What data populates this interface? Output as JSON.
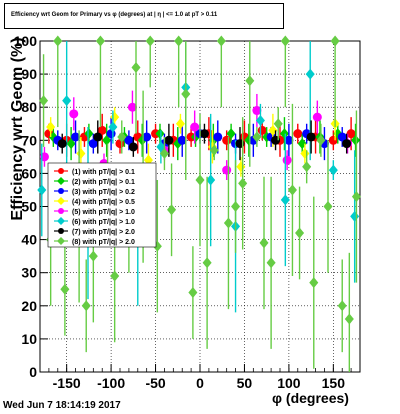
{
  "title": "Efficiency wrt Geom for Primary vs φ (degrees) at | η | <= 1.0 at pT > 0.11",
  "timestamp": "Wed Jun  7 18:14:19 2017",
  "chart_data": {
    "type": "scatter",
    "title": "Efficiency wrt Geom for Primary vs φ (degrees) at | η | <= 1.0 at pT > 0.11",
    "xlabel": "φ (degrees)",
    "ylabel": "Efficiency wrt Geom (%)",
    "xlim": [
      -180,
      180
    ],
    "ylim": [
      0,
      100
    ],
    "xticks": [
      -150,
      -100,
      -50,
      0,
      50,
      100,
      150
    ],
    "yticks": [
      0,
      10,
      20,
      30,
      40,
      50,
      60,
      70,
      80,
      90,
      100
    ],
    "grid": true,
    "legend_position": "left",
    "legend": [
      "(1) with pT/|q| > 0.1",
      "(2) with pT/|q| > 0.1",
      "(3) with pT/|q| > 0.2",
      "(4) with pT/|q| > 0.5",
      "(5) with pT/|q| > 1.0",
      "(6) with pT/|q| > 1.0",
      "(7) with pT/|q| > 2.0",
      "(8) with pT/|q| > 2.0"
    ],
    "series": [
      {
        "name": "(1) with pT/|q| > 0.1",
        "color": "#ff0000",
        "x": [
          -170,
          -150,
          -130,
          -110,
          -90,
          -70,
          -50,
          -30,
          -10,
          10,
          30,
          50,
          70,
          90,
          110,
          130,
          150,
          170
        ],
        "y": [
          72,
          70,
          71,
          73,
          69,
          71,
          72,
          70,
          71,
          72,
          70,
          71,
          73,
          70,
          72,
          71,
          70,
          72
        ]
      },
      {
        "name": "(2) with pT/|q| > 0.1",
        "color": "#00cc00",
        "x": [
          -165,
          -145,
          -125,
          -105,
          -85,
          -65,
          -45,
          -25,
          -5,
          15,
          35,
          55,
          75,
          95,
          115,
          135,
          155,
          175
        ],
        "y": [
          71,
          69,
          72,
          70,
          71,
          70,
          72,
          69,
          71,
          70,
          72,
          70,
          71,
          72,
          69,
          71,
          72,
          70
        ]
      },
      {
        "name": "(3) with pT/|q| > 0.2",
        "color": "#0000ff",
        "x": [
          -160,
          -140,
          -120,
          -100,
          -80,
          -60,
          -40,
          -20,
          0,
          20,
          40,
          60,
          80,
          100,
          120,
          140,
          160
        ],
        "y": [
          70,
          71,
          69,
          72,
          70,
          71,
          69,
          70,
          72,
          71,
          69,
          70,
          71,
          70,
          72,
          69,
          71
        ]
      },
      {
        "name": "(4) with pT/|q| > 0.5",
        "color": "#ffff00",
        "x": [
          -168,
          -134,
          -96,
          -58,
          -22,
          14,
          46,
          82,
          118,
          152
        ],
        "y": [
          74,
          66,
          77,
          64,
          75,
          68,
          62,
          73,
          66,
          75
        ]
      },
      {
        "name": "(5) with pT/|q| > 1.0",
        "color": "#ff00ff",
        "x": [
          -175,
          -142,
          -108,
          -76,
          -40,
          -6,
          30,
          64,
          98,
          132,
          166
        ],
        "y": [
          65,
          78,
          63,
          80,
          67,
          74,
          61,
          79,
          64,
          77,
          69
        ]
      },
      {
        "name": "(6) with pT/|q| > 1.0",
        "color": "#00cccc",
        "x": [
          -178,
          -150,
          -126,
          -98,
          -70,
          -44,
          -16,
          12,
          40,
          68,
          96,
          124,
          150,
          174
        ],
        "y": [
          55,
          82,
          48,
          74,
          40,
          68,
          86,
          58,
          44,
          76,
          52,
          90,
          61,
          47
        ]
      },
      {
        "name": "(7) with pT/|q| > 2.0",
        "color": "#000000",
        "x": [
          -155,
          -115,
          -75,
          -35,
          5,
          45,
          85,
          125,
          165
        ],
        "y": [
          69,
          71,
          68,
          70,
          72,
          69,
          70,
          71,
          69
        ]
      },
      {
        "name": "(8) with pT/|q| > 2.0",
        "color": "#66cc44",
        "x": [
          -176,
          -168,
          -160,
          -152,
          -144,
          -136,
          -128,
          -120,
          -112,
          -104,
          -96,
          -88,
          -80,
          -72,
          -64,
          -56,
          -48,
          -40,
          -32,
          -24,
          -16,
          -8,
          0,
          8,
          16,
          24,
          32,
          40,
          48,
          56,
          64,
          72,
          80,
          88,
          96,
          104,
          112,
          120,
          128,
          136,
          144,
          152,
          160,
          168,
          176
        ],
        "y": [
          82,
          40,
          100,
          25,
          60,
          47,
          20,
          35,
          100,
          55,
          29,
          71,
          44,
          92,
          59,
          100,
          38,
          66,
          49,
          100,
          84,
          24,
          58,
          33,
          67,
          100,
          45,
          50,
          57,
          88,
          71,
          39,
          33,
          75,
          100,
          55,
          42,
          62,
          27,
          70,
          50,
          100,
          20,
          16,
          53
        ]
      }
    ]
  }
}
